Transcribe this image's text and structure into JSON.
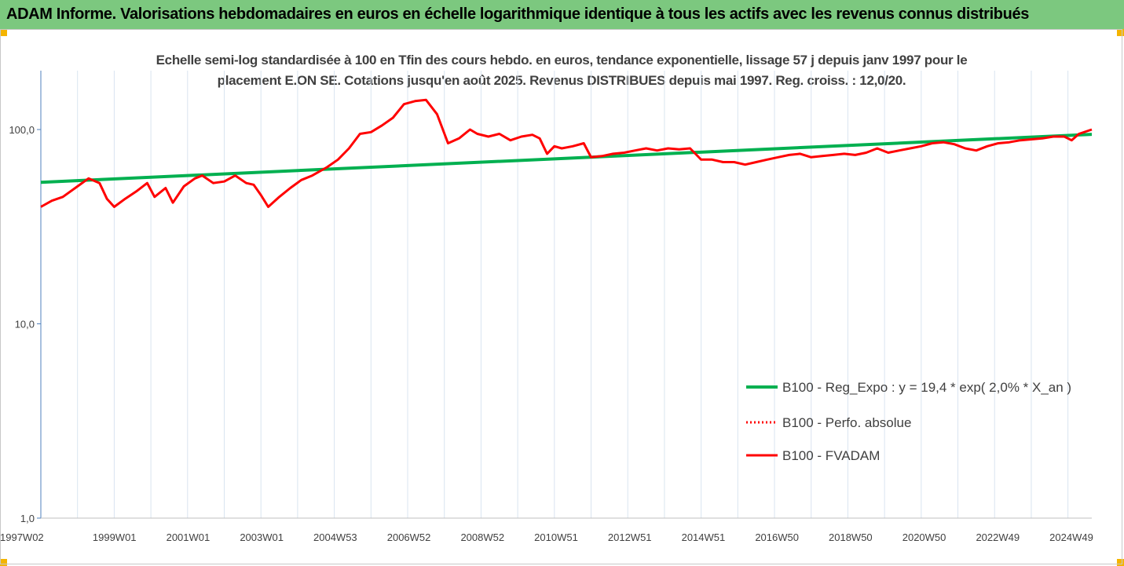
{
  "header": {
    "title": "ADAM Informe. Valorisations hebdomadaires en euros en échelle logarithmique identique à tous les actifs avec les revenus connus distribués"
  },
  "colors": {
    "header_bg": "#7cc87f",
    "trend": "#00b050",
    "price": "#ff0000",
    "grid": "#d9e4f0",
    "axis": "#4f81bd"
  },
  "chart_data": {
    "type": "line",
    "title": "Echelle semi-log standardisée à 100 en Tfin des cours hebdo. en euros, tendance exponentielle, lissage 57 j depuis janv 1997 pour le placement E.ON SE. Cotations jusqu'en août 2025. Revenus DISTRIBUES depuis mai 1997. Reg. croiss. : 12,0/20.",
    "y_scale": "log",
    "ylim": [
      1,
      200
    ],
    "y_ticks": [
      "100,0",
      "10,0",
      "1,0"
    ],
    "x_range": [
      "1997W02",
      "2025W35"
    ],
    "x_tick_labels": [
      "1997W02",
      "1999W01",
      "2001W01",
      "2003W01",
      "2004W53",
      "2006W52",
      "2008W52",
      "2010W51",
      "2012W51",
      "2014W51",
      "2016W50",
      "2018W50",
      "2020W50",
      "2022W49",
      "2024W49"
    ],
    "grid": "vertical",
    "legend_position": "bottom-right",
    "series": [
      {
        "name": "B100 - Reg_Expo : y = 19,4 * exp( 2,0% *  X_an )",
        "style": "solid",
        "color": "#00b050",
        "x": [
          1997.0,
          2025.65
        ],
        "y": [
          53.5,
          94.5
        ]
      },
      {
        "name": "B100 - Perfo. absolue",
        "style": "dotted",
        "color": "#ff0000",
        "x": [],
        "y": []
      },
      {
        "name": "B100 - FVADAM",
        "style": "solid",
        "color": "#ff0000",
        "x": [
          1997.0,
          1997.3,
          1997.6,
          1998.0,
          1998.3,
          1998.6,
          1998.8,
          1999.0,
          1999.3,
          1999.6,
          1999.9,
          2000.1,
          2000.4,
          2000.6,
          2000.9,
          2001.2,
          2001.4,
          2001.7,
          2002.0,
          2002.3,
          2002.6,
          2002.8,
          2003.0,
          2003.2,
          2003.5,
          2003.8,
          2004.1,
          2004.4,
          2004.8,
          2005.1,
          2005.4,
          2005.7,
          2006.0,
          2006.3,
          2006.6,
          2006.9,
          2007.2,
          2007.5,
          2007.8,
          2008.1,
          2008.4,
          2008.7,
          2008.9,
          2009.2,
          2009.5,
          2009.8,
          2010.1,
          2010.4,
          2010.6,
          2010.8,
          2011.0,
          2011.2,
          2011.5,
          2011.8,
          2012.0,
          2012.3,
          2012.6,
          2012.9,
          2013.2,
          2013.5,
          2013.8,
          2014.1,
          2014.4,
          2014.7,
          2015.0,
          2015.3,
          2015.6,
          2015.9,
          2016.2,
          2016.5,
          2016.8,
          2017.1,
          2017.4,
          2017.7,
          2018.0,
          2018.3,
          2018.6,
          2018.9,
          2019.2,
          2019.5,
          2019.8,
          2020.1,
          2020.4,
          2020.7,
          2021.0,
          2021.3,
          2021.6,
          2021.9,
          2022.2,
          2022.5,
          2022.8,
          2023.1,
          2023.4,
          2023.7,
          2024.0,
          2024.3,
          2024.6,
          2024.9,
          2025.1,
          2025.3,
          2025.65
        ],
        "y": [
          40,
          43,
          45,
          51,
          56,
          53,
          44,
          40,
          44,
          48,
          53,
          45,
          50,
          42,
          51,
          56,
          58,
          53,
          54,
          58,
          53,
          52,
          46,
          40,
          45,
          50,
          55,
          58,
          64,
          70,
          80,
          95,
          97,
          105,
          115,
          135,
          140,
          142,
          120,
          85,
          90,
          100,
          95,
          92,
          95,
          88,
          92,
          94,
          90,
          75,
          82,
          80,
          82,
          85,
          72,
          73,
          75,
          76,
          78,
          80,
          78,
          80,
          79,
          80,
          70,
          70,
          68,
          68,
          66,
          68,
          70,
          72,
          74,
          75,
          72,
          73,
          74,
          75,
          74,
          76,
          80,
          76,
          78,
          80,
          82,
          85,
          86,
          84,
          80,
          78,
          82,
          85,
          86,
          88,
          89,
          90,
          92,
          92,
          88,
          95,
          100
        ]
      }
    ]
  }
}
